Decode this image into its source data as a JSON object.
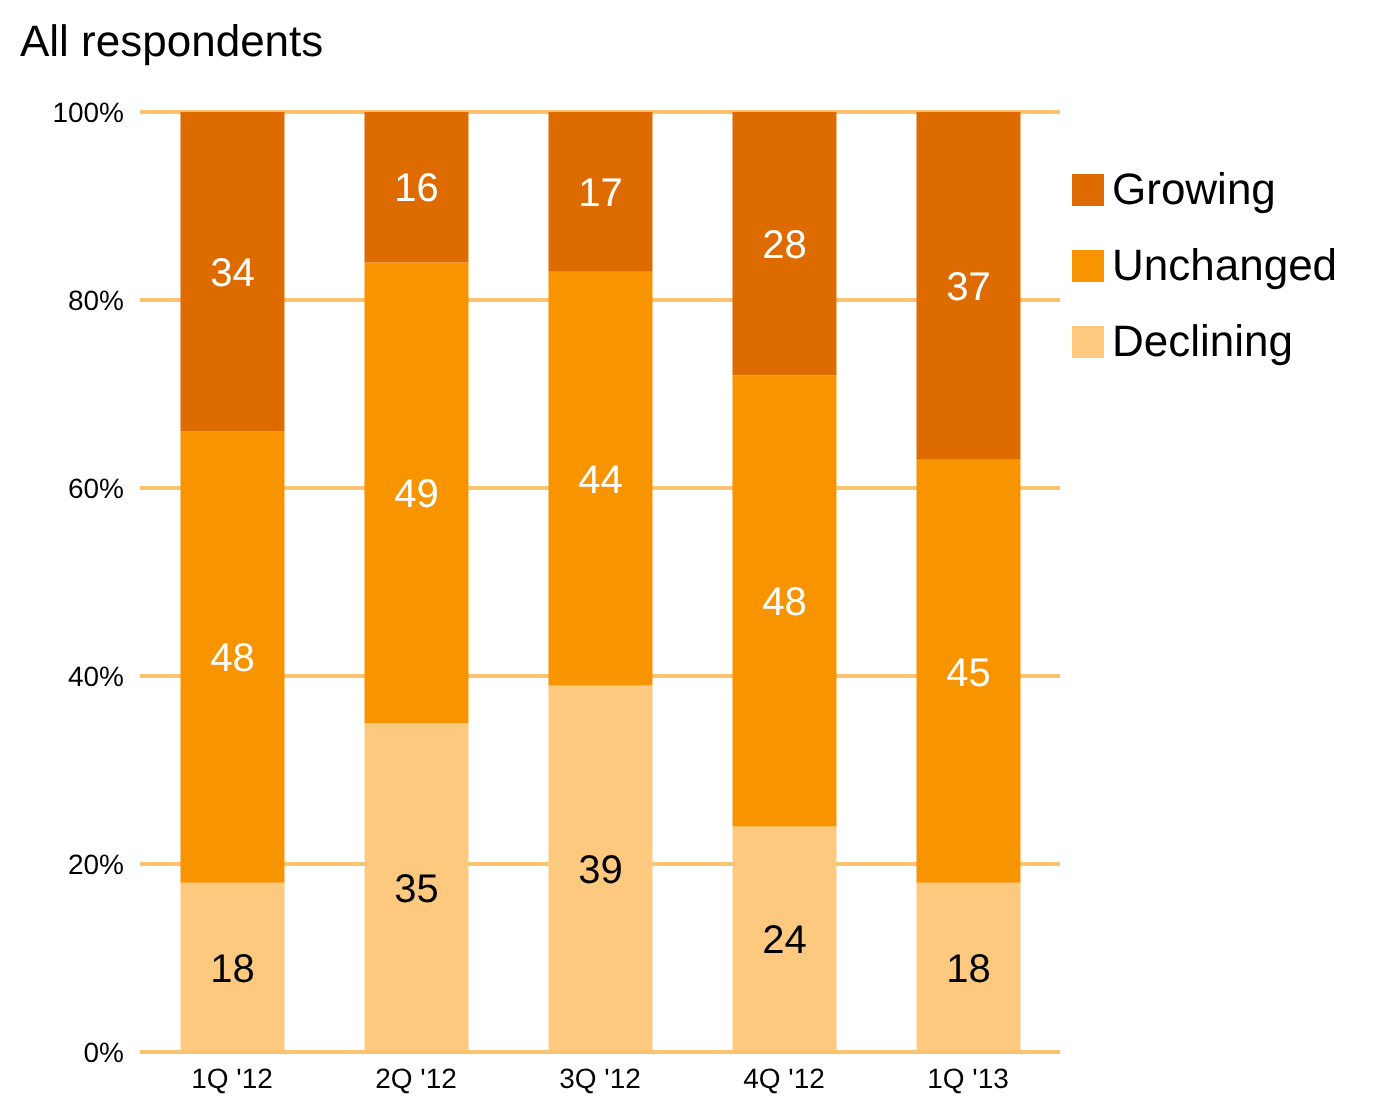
{
  "chart_data": {
    "type": "bar",
    "title": "All respondents",
    "categories": [
      "1Q '12",
      "2Q '12",
      "3Q '12",
      "4Q '12",
      "1Q '13"
    ],
    "series": [
      {
        "name": "Declining",
        "color": "#fdc97f",
        "values": [
          18,
          35,
          39,
          24,
          18
        ]
      },
      {
        "name": "Unchanged",
        "color": "#f79400",
        "values": [
          48,
          49,
          44,
          48,
          45
        ]
      },
      {
        "name": "Growing",
        "color": "#de6b00",
        "values": [
          34,
          16,
          17,
          28,
          37
        ]
      }
    ],
    "stacked": true,
    "ylim": [
      0,
      100
    ],
    "yticks": [
      {
        "value": 0,
        "label": "0%"
      },
      {
        "value": 20,
        "label": "20%"
      },
      {
        "value": 40,
        "label": "40%"
      },
      {
        "value": 60,
        "label": "60%"
      },
      {
        "value": 80,
        "label": "80%"
      },
      {
        "value": 100,
        "label": "100%"
      }
    ],
    "grid": "y",
    "legend": "right",
    "data_labels": true
  }
}
